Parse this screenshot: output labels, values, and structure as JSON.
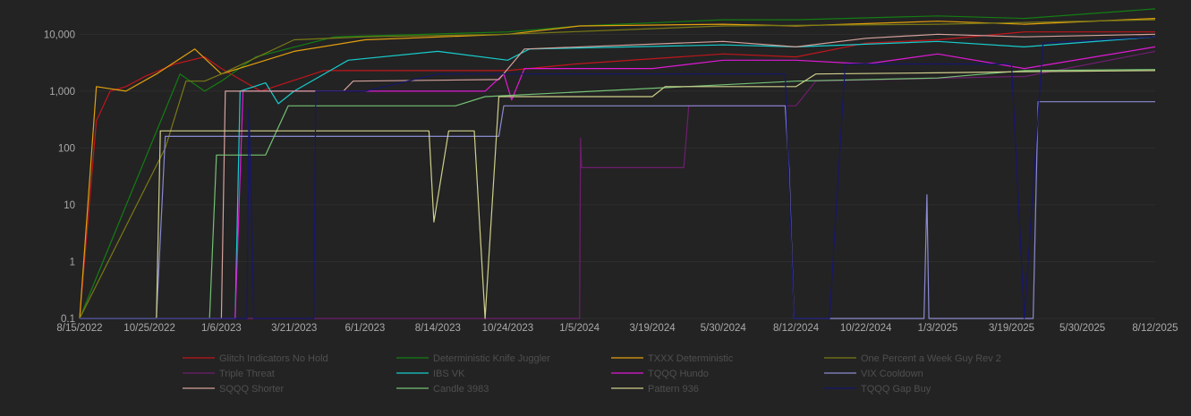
{
  "chart_data": {
    "type": "line",
    "title": "",
    "xlabel": "",
    "ylabel": "",
    "y_scale": "log",
    "ylim": [
      0.1,
      30000
    ],
    "y_ticks": [
      {
        "label": "10,000",
        "value": 10000
      },
      {
        "label": "1,000",
        "value": 1000
      },
      {
        "label": "100",
        "value": 100
      },
      {
        "label": "10",
        "value": 10
      },
      {
        "label": "1",
        "value": 1
      },
      {
        "label": "0.1",
        "value": 0.1
      }
    ],
    "x_range": [
      "2022-08-15",
      "2025-08-12"
    ],
    "x_ticks": [
      {
        "label": "8/15/2022",
        "date": "2022-08-15"
      },
      {
        "label": "10/25/2022",
        "date": "2022-10-25"
      },
      {
        "label": "1/6/2023",
        "date": "2023-01-06"
      },
      {
        "label": "3/21/2023",
        "date": "2023-03-21"
      },
      {
        "label": "6/1/2023",
        "date": "2023-06-01"
      },
      {
        "label": "8/14/2023",
        "date": "2023-08-14"
      },
      {
        "label": "10/24/2023",
        "date": "2023-10-24"
      },
      {
        "label": "1/5/2024",
        "date": "2024-01-05"
      },
      {
        "label": "3/19/2024",
        "date": "2024-03-19"
      },
      {
        "label": "5/30/2024",
        "date": "2024-05-30"
      },
      {
        "label": "8/12/2024",
        "date": "2024-08-12"
      },
      {
        "label": "10/22/2024",
        "date": "2024-10-22"
      },
      {
        "label": "1/3/2025",
        "date": "2025-01-03"
      },
      {
        "label": "3/19/2025",
        "date": "2025-03-19"
      },
      {
        "label": "5/30/2025",
        "date": "2025-05-30"
      },
      {
        "label": "8/12/2025",
        "date": "2025-08-12"
      }
    ],
    "grid": true,
    "legend_position": "bottom",
    "series": [
      {
        "name": "Glitch Indicators No Hold",
        "color": "#c0161c",
        "points": [
          [
            "2022-08-15",
            0.1
          ],
          [
            "2022-09-01",
            300
          ],
          [
            "2022-09-15",
            1000
          ],
          [
            "2022-10-01",
            1200
          ],
          [
            "2022-10-20",
            1800
          ],
          [
            "2022-11-20",
            3000
          ],
          [
            "2022-12-20",
            4000
          ],
          [
            "2023-01-06",
            2500
          ],
          [
            "2023-02-15",
            1000
          ],
          [
            "2023-04-20",
            2300
          ],
          [
            "2023-10-24",
            2300
          ],
          [
            "2024-01-01",
            3000
          ],
          [
            "2024-05-30",
            4500
          ],
          [
            "2024-08-12",
            4000
          ],
          [
            "2024-10-22",
            7000
          ],
          [
            "2025-01-03",
            8000
          ],
          [
            "2025-04-01",
            11000
          ],
          [
            "2025-08-12",
            11000
          ]
        ]
      },
      {
        "name": "Deterministic Knife Juggler",
        "color": "#137d13",
        "points": [
          [
            "2022-08-15",
            0.1
          ],
          [
            "2022-11-25",
            2000
          ],
          [
            "2022-12-20",
            1000
          ],
          [
            "2023-01-06",
            1500
          ],
          [
            "2023-02-10",
            4000
          ],
          [
            "2023-05-01",
            9000
          ],
          [
            "2023-10-24",
            11000
          ],
          [
            "2024-01-05",
            14000
          ],
          [
            "2024-05-30",
            18000
          ],
          [
            "2024-08-12",
            18000
          ],
          [
            "2025-01-03",
            21000
          ],
          [
            "2025-04-01",
            19000
          ],
          [
            "2025-08-12",
            28000
          ]
        ]
      },
      {
        "name": "TXXX Deterministic",
        "color": "#e3a00e",
        "points": [
          [
            "2022-08-15",
            0.1
          ],
          [
            "2022-09-01",
            1200
          ],
          [
            "2022-10-01",
            1000
          ],
          [
            "2022-11-01",
            2000
          ],
          [
            "2022-12-10",
            5500
          ],
          [
            "2023-01-06",
            2000
          ],
          [
            "2023-03-21",
            5000
          ],
          [
            "2023-06-01",
            8000
          ],
          [
            "2023-10-24",
            10000
          ],
          [
            "2024-01-05",
            14000
          ],
          [
            "2024-05-30",
            15000
          ],
          [
            "2024-08-12",
            14000
          ],
          [
            "2025-01-03",
            17000
          ],
          [
            "2025-04-01",
            15000
          ],
          [
            "2025-08-12",
            19000
          ]
        ]
      },
      {
        "name": "One Percent a Week Guy Rev 2",
        "color": "#7a7a16",
        "points": [
          [
            "2022-08-15",
            0.1
          ],
          [
            "2022-11-10",
            100
          ],
          [
            "2022-12-01",
            1500
          ],
          [
            "2022-12-20",
            1500
          ],
          [
            "2023-01-06",
            2000
          ],
          [
            "2023-03-21",
            8000
          ],
          [
            "2023-06-01",
            9000
          ],
          [
            "2023-10-24",
            10000
          ],
          [
            "2024-05-30",
            14000
          ],
          [
            "2025-01-03",
            15000
          ],
          [
            "2025-08-12",
            18000
          ]
        ]
      },
      {
        "name": "Triple Threat",
        "color": "#6e1e6e",
        "points": [
          [
            "2022-08-15",
            0.1
          ],
          [
            "2024-01-05",
            0.1
          ],
          [
            "2024-01-06",
            150
          ],
          [
            "2024-01-07",
            45
          ],
          [
            "2024-04-20",
            45
          ],
          [
            "2024-04-25",
            550
          ],
          [
            "2024-08-12",
            550
          ],
          [
            "2024-09-01",
            1500
          ],
          [
            "2025-03-19",
            1800
          ],
          [
            "2025-04-01",
            1800
          ],
          [
            "2025-08-12",
            5000
          ]
        ]
      },
      {
        "name": "IBS VK",
        "color": "#17cccc",
        "points": [
          [
            "2022-08-15",
            0.1
          ],
          [
            "2023-01-20",
            0.1
          ],
          [
            "2023-01-25",
            1000
          ],
          [
            "2023-02-20",
            1400
          ],
          [
            "2023-03-05",
            600
          ],
          [
            "2023-03-21",
            1000
          ],
          [
            "2023-05-15",
            3500
          ],
          [
            "2023-08-14",
            5000
          ],
          [
            "2023-10-24",
            3500
          ],
          [
            "2023-11-15",
            5500
          ],
          [
            "2024-05-30",
            6500
          ],
          [
            "2024-08-12",
            6000
          ],
          [
            "2025-01-03",
            7500
          ],
          [
            "2025-04-01",
            6000
          ],
          [
            "2025-08-12",
            9000
          ]
        ]
      },
      {
        "name": "TQQQ Hundo",
        "color": "#e019d6",
        "points": [
          [
            "2022-08-15",
            0.1
          ],
          [
            "2023-01-20",
            0.1
          ],
          [
            "2023-01-28",
            1000
          ],
          [
            "2023-10-01",
            1000
          ],
          [
            "2023-10-20",
            2000
          ],
          [
            "2023-10-28",
            700
          ],
          [
            "2023-11-10",
            2500
          ],
          [
            "2024-03-19",
            2500
          ],
          [
            "2024-05-30",
            3500
          ],
          [
            "2024-08-12",
            3500
          ],
          [
            "2024-10-22",
            3000
          ],
          [
            "2025-01-03",
            4500
          ],
          [
            "2025-04-01",
            2500
          ],
          [
            "2025-08-12",
            6000
          ]
        ]
      },
      {
        "name": "VIX Cooldown",
        "color": "#8a8ad2",
        "points": [
          [
            "2022-08-15",
            0.1
          ],
          [
            "2022-11-01",
            0.1
          ],
          [
            "2022-11-10",
            160
          ],
          [
            "2023-10-15",
            160
          ],
          [
            "2023-10-20",
            550
          ],
          [
            "2024-08-01",
            550
          ],
          [
            "2024-08-05",
            40
          ],
          [
            "2024-08-10",
            0.1
          ],
          [
            "2024-12-20",
            0.1
          ],
          [
            "2024-12-23",
            15
          ],
          [
            "2024-12-25",
            0.1
          ],
          [
            "2025-04-10",
            0.1
          ],
          [
            "2025-04-15",
            650
          ],
          [
            "2025-08-12",
            650
          ]
        ]
      },
      {
        "name": "SQQQ Shorter",
        "color": "#d4a29d",
        "points": [
          [
            "2022-08-15",
            0.1
          ],
          [
            "2023-01-06",
            0.1
          ],
          [
            "2023-01-10",
            1000
          ],
          [
            "2023-05-10",
            1000
          ],
          [
            "2023-05-20",
            1500
          ],
          [
            "2023-10-15",
            1600
          ],
          [
            "2023-11-10",
            5500
          ],
          [
            "2024-05-30",
            7500
          ],
          [
            "2024-08-12",
            6000
          ],
          [
            "2024-10-22",
            8500
          ],
          [
            "2025-01-03",
            10000
          ],
          [
            "2025-04-01",
            9000
          ],
          [
            "2025-08-12",
            10000
          ]
        ]
      },
      {
        "name": "Candle 3983",
        "color": "#74c174",
        "points": [
          [
            "2022-08-15",
            0.1
          ],
          [
            "2022-12-25",
            0.1
          ],
          [
            "2023-01-01",
            75
          ],
          [
            "2023-02-20",
            75
          ],
          [
            "2023-03-15",
            550
          ],
          [
            "2023-09-01",
            550
          ],
          [
            "2023-10-01",
            800
          ],
          [
            "2024-08-12",
            1500
          ],
          [
            "2025-01-03",
            1700
          ],
          [
            "2025-04-01",
            2300
          ],
          [
            "2025-08-12",
            2400
          ]
        ]
      },
      {
        "name": "Pattern 936",
        "color": "#cfcf8c",
        "points": [
          [
            "2022-08-15",
            0.1
          ],
          [
            "2022-11-01",
            0.1
          ],
          [
            "2022-11-05",
            200
          ],
          [
            "2023-08-05",
            200
          ],
          [
            "2023-08-10",
            5
          ],
          [
            "2023-08-25",
            200
          ],
          [
            "2023-09-20",
            200
          ],
          [
            "2023-10-01",
            0.1
          ],
          [
            "2023-10-15",
            800
          ],
          [
            "2024-03-19",
            800
          ],
          [
            "2024-04-01",
            1200
          ],
          [
            "2024-08-12",
            1200
          ],
          [
            "2024-09-01",
            2000
          ],
          [
            "2025-01-03",
            2100
          ],
          [
            "2025-04-01",
            2200
          ],
          [
            "2025-08-12",
            2300
          ]
        ]
      },
      {
        "name": "TQQQ Gap Buy",
        "color": "#16166e",
        "points": [
          [
            "2022-08-15",
            0.1
          ],
          [
            "2023-02-01",
            0.1
          ],
          [
            "2023-02-03",
            500
          ],
          [
            "2023-02-08",
            0.1
          ],
          [
            "2023-04-10",
            0.1
          ],
          [
            "2023-04-12",
            1000
          ],
          [
            "2023-06-01",
            1000
          ],
          [
            "2023-08-14",
            2000
          ],
          [
            "2024-08-01",
            2000
          ],
          [
            "2024-08-10",
            0.1
          ],
          [
            "2024-09-15",
            0.1
          ],
          [
            "2024-10-01",
            3000
          ],
          [
            "2025-03-19",
            3000
          ],
          [
            "2025-04-01",
            0.1
          ],
          [
            "2025-04-20",
            7000
          ],
          [
            "2025-08-12",
            9000
          ]
        ]
      }
    ]
  }
}
